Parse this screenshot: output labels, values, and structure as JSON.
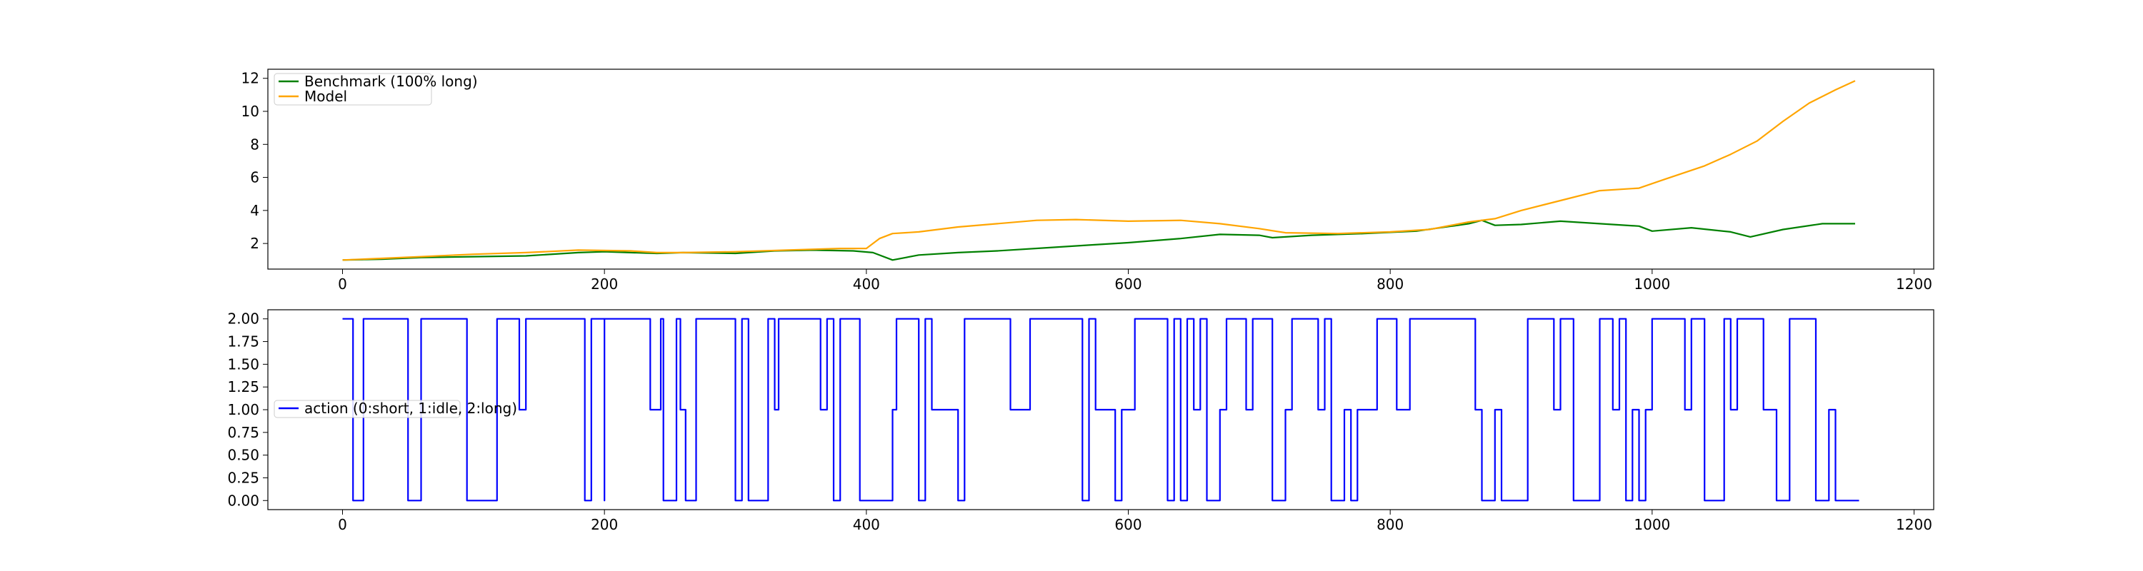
{
  "chart_data": [
    {
      "type": "line",
      "title": "",
      "xlabel": "",
      "ylabel": "",
      "xlim": [
        -57,
        1215
      ],
      "ylim": [
        0.45,
        12.55
      ],
      "xticks": [
        0,
        200,
        400,
        600,
        800,
        1000,
        1200
      ],
      "yticks": [
        2,
        4,
        6,
        8,
        10,
        12
      ],
      "grid": false,
      "legend_position": "upper left",
      "series": [
        {
          "name": "Benchmark (100% long)",
          "color": "#008000",
          "points": [
            [
              0,
              1.0
            ],
            [
              30,
              1.05
            ],
            [
              60,
              1.15
            ],
            [
              100,
              1.2
            ],
            [
              140,
              1.25
            ],
            [
              180,
              1.45
            ],
            [
              200,
              1.5
            ],
            [
              220,
              1.45
            ],
            [
              240,
              1.4
            ],
            [
              260,
              1.45
            ],
            [
              300,
              1.4
            ],
            [
              330,
              1.55
            ],
            [
              360,
              1.6
            ],
            [
              390,
              1.55
            ],
            [
              405,
              1.45
            ],
            [
              420,
              1.0
            ],
            [
              440,
              1.3
            ],
            [
              470,
              1.45
            ],
            [
              500,
              1.55
            ],
            [
              540,
              1.75
            ],
            [
              570,
              1.9
            ],
            [
              600,
              2.05
            ],
            [
              640,
              2.3
            ],
            [
              670,
              2.55
            ],
            [
              700,
              2.5
            ],
            [
              710,
              2.35
            ],
            [
              740,
              2.5
            ],
            [
              780,
              2.6
            ],
            [
              820,
              2.75
            ],
            [
              860,
              3.2
            ],
            [
              870,
              3.4
            ],
            [
              880,
              3.1
            ],
            [
              900,
              3.15
            ],
            [
              930,
              3.35
            ],
            [
              960,
              3.2
            ],
            [
              990,
              3.05
            ],
            [
              1000,
              2.75
            ],
            [
              1030,
              2.95
            ],
            [
              1060,
              2.7
            ],
            [
              1075,
              2.4
            ],
            [
              1100,
              2.85
            ],
            [
              1130,
              3.2
            ],
            [
              1155,
              3.2
            ]
          ]
        },
        {
          "name": "Model",
          "color": "#ffa500",
          "points": [
            [
              0,
              1.0
            ],
            [
              30,
              1.1
            ],
            [
              60,
              1.2
            ],
            [
              100,
              1.35
            ],
            [
              140,
              1.45
            ],
            [
              180,
              1.6
            ],
            [
              220,
              1.55
            ],
            [
              240,
              1.45
            ],
            [
              260,
              1.45
            ],
            [
              300,
              1.5
            ],
            [
              340,
              1.6
            ],
            [
              380,
              1.7
            ],
            [
              400,
              1.7
            ],
            [
              410,
              2.3
            ],
            [
              420,
              2.6
            ],
            [
              440,
              2.7
            ],
            [
              470,
              3.0
            ],
            [
              500,
              3.2
            ],
            [
              530,
              3.4
            ],
            [
              560,
              3.45
            ],
            [
              600,
              3.35
            ],
            [
              640,
              3.4
            ],
            [
              670,
              3.2
            ],
            [
              700,
              2.9
            ],
            [
              720,
              2.65
            ],
            [
              760,
              2.6
            ],
            [
              800,
              2.7
            ],
            [
              830,
              2.85
            ],
            [
              860,
              3.3
            ],
            [
              880,
              3.5
            ],
            [
              900,
              4.0
            ],
            [
              930,
              4.6
            ],
            [
              960,
              5.2
            ],
            [
              990,
              5.35
            ],
            [
              1010,
              5.9
            ],
            [
              1040,
              6.7
            ],
            [
              1060,
              7.4
            ],
            [
              1080,
              8.2
            ],
            [
              1100,
              9.4
            ],
            [
              1120,
              10.5
            ],
            [
              1140,
              11.3
            ],
            [
              1155,
              11.85
            ]
          ]
        }
      ]
    },
    {
      "type": "line",
      "title": "",
      "xlabel": "",
      "ylabel": "",
      "xlim": [
        -57,
        1215
      ],
      "ylim": [
        -0.1,
        2.1
      ],
      "xticks": [
        0,
        200,
        400,
        600,
        800,
        1000,
        1200
      ],
      "yticks": [
        0.0,
        0.25,
        0.5,
        0.75,
        1.0,
        1.25,
        1.5,
        1.75,
        2.0
      ],
      "grid": false,
      "legend_position": "center left",
      "series": [
        {
          "name": "action (0:short, 1:idle, 2:long)",
          "color": "#0000ff",
          "step": true,
          "points": [
            [
              0,
              2
            ],
            [
              8,
              0
            ],
            [
              16,
              2
            ],
            [
              50,
              0
            ],
            [
              60,
              2
            ],
            [
              95,
              0
            ],
            [
              118,
              2
            ],
            [
              135,
              1
            ],
            [
              140,
              2
            ],
            [
              185,
              0
            ],
            [
              190,
              2
            ],
            [
              200,
              0
            ],
            [
              200,
              2
            ],
            [
              235,
              1
            ],
            [
              243,
              2
            ],
            [
              245,
              0
            ],
            [
              255,
              2
            ],
            [
              258,
              1
            ],
            [
              262,
              0
            ],
            [
              270,
              2
            ],
            [
              300,
              0
            ],
            [
              305,
              2
            ],
            [
              310,
              0
            ],
            [
              325,
              2
            ],
            [
              330,
              1
            ],
            [
              333,
              2
            ],
            [
              365,
              1
            ],
            [
              370,
              2
            ],
            [
              375,
              0
            ],
            [
              380,
              2
            ],
            [
              395,
              0
            ],
            [
              420,
              1
            ],
            [
              423,
              2
            ],
            [
              440,
              0
            ],
            [
              445,
              2
            ],
            [
              450,
              1
            ],
            [
              470,
              0
            ],
            [
              475,
              2
            ],
            [
              510,
              1
            ],
            [
              525,
              2
            ],
            [
              565,
              0
            ],
            [
              570,
              2
            ],
            [
              575,
              1
            ],
            [
              590,
              0
            ],
            [
              595,
              1
            ],
            [
              605,
              2
            ],
            [
              630,
              0
            ],
            [
              635,
              2
            ],
            [
              640,
              0
            ],
            [
              645,
              2
            ],
            [
              650,
              1
            ],
            [
              655,
              2
            ],
            [
              660,
              0
            ],
            [
              670,
              1
            ],
            [
              675,
              2
            ],
            [
              690,
              1
            ],
            [
              695,
              2
            ],
            [
              710,
              0
            ],
            [
              720,
              1
            ],
            [
              725,
              2
            ],
            [
              745,
              1
            ],
            [
              750,
              2
            ],
            [
              755,
              0
            ],
            [
              765,
              1
            ],
            [
              770,
              0
            ],
            [
              775,
              1
            ],
            [
              790,
              2
            ],
            [
              805,
              1
            ],
            [
              815,
              2
            ],
            [
              865,
              1
            ],
            [
              870,
              0
            ],
            [
              880,
              1
            ],
            [
              885,
              0
            ],
            [
              905,
              2
            ],
            [
              925,
              1
            ],
            [
              930,
              2
            ],
            [
              940,
              0
            ],
            [
              960,
              2
            ],
            [
              970,
              1
            ],
            [
              975,
              2
            ],
            [
              980,
              0
            ],
            [
              985,
              1
            ],
            [
              990,
              0
            ],
            [
              995,
              1
            ],
            [
              1000,
              2
            ],
            [
              1025,
              1
            ],
            [
              1030,
              2
            ],
            [
              1040,
              0
            ],
            [
              1055,
              2
            ],
            [
              1060,
              1
            ],
            [
              1065,
              2
            ],
            [
              1085,
              1
            ],
            [
              1095,
              0
            ],
            [
              1105,
              2
            ],
            [
              1125,
              0
            ],
            [
              1135,
              1
            ],
            [
              1140,
              0
            ],
            [
              1158,
              0
            ]
          ]
        }
      ]
    }
  ]
}
